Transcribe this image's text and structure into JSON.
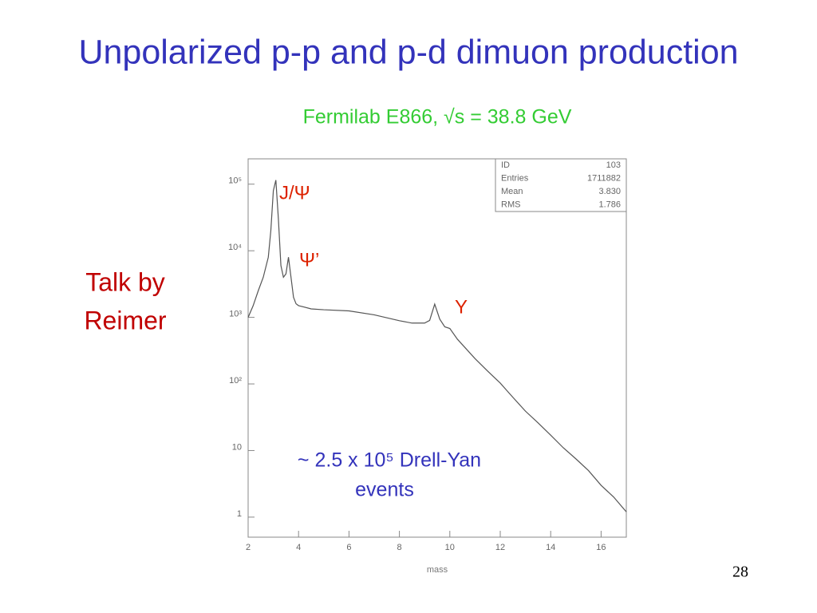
{
  "title": "Unpolarized p-p and p-d dimuon production",
  "side_note": [
    "Talk by",
    "Reimer"
  ],
  "page_number": "28",
  "chart_data": {
    "type": "line",
    "subtitle": "Fermilab E866, √s = 38.8 GeV",
    "x_label": "mass",
    "x": [
      2.0,
      2.2,
      2.4,
      2.6,
      2.8,
      2.9,
      3.0,
      3.1,
      3.2,
      3.3,
      3.4,
      3.5,
      3.6,
      3.7,
      3.8,
      3.9,
      4.0,
      4.5,
      5.0,
      6.0,
      7.0,
      8.0,
      8.5,
      9.0,
      9.2,
      9.4,
      9.6,
      9.8,
      10.0,
      10.3,
      11.0,
      11.5,
      12.0,
      12.5,
      13.0,
      13.5,
      14.0,
      14.5,
      15.0,
      15.5,
      16.0,
      16.5,
      17.0
    ],
    "values": [
      1000,
      1500,
      2500,
      4000,
      8000,
      20000,
      80000,
      115000,
      30000,
      6000,
      4000,
      4500,
      8000,
      4000,
      2000,
      1600,
      1500,
      1340,
      1300,
      1250,
      1090,
      890,
      820,
      820,
      900,
      1580,
      940,
      720,
      680,
      470,
      240,
      156,
      103,
      63,
      39,
      26,
      17,
      11,
      7.5,
      5,
      3,
      2,
      1.2
    ],
    "color": "#555555",
    "xlim": [
      2,
      17
    ],
    "ylim": [
      0.5,
      240000
    ],
    "log_y": true,
    "xticks": [
      2,
      4,
      6,
      8,
      10,
      12,
      14,
      16
    ],
    "yticks": [
      1,
      10,
      {
        "value": 100,
        "label": "10²"
      },
      {
        "value": 1000,
        "label": "10³"
      },
      {
        "value": 10000,
        "label": "10⁴"
      },
      {
        "value": 100000,
        "label": "10⁵"
      }
    ],
    "stats": [
      {
        "label": "ID",
        "value": "103"
      },
      {
        "label": "Entries",
        "value": "1711882"
      },
      {
        "label": "Mean",
        "value": "3.830"
      },
      {
        "label": "RMS",
        "value": "1.786"
      }
    ],
    "annotations": {
      "jpsi": "J/Ψ",
      "psi_prime": "Ψ’",
      "upsilon": "Υ",
      "drell_yan": [
        "~ 2.5 x 10⁵ Drell-Yan",
        "events"
      ]
    }
  }
}
